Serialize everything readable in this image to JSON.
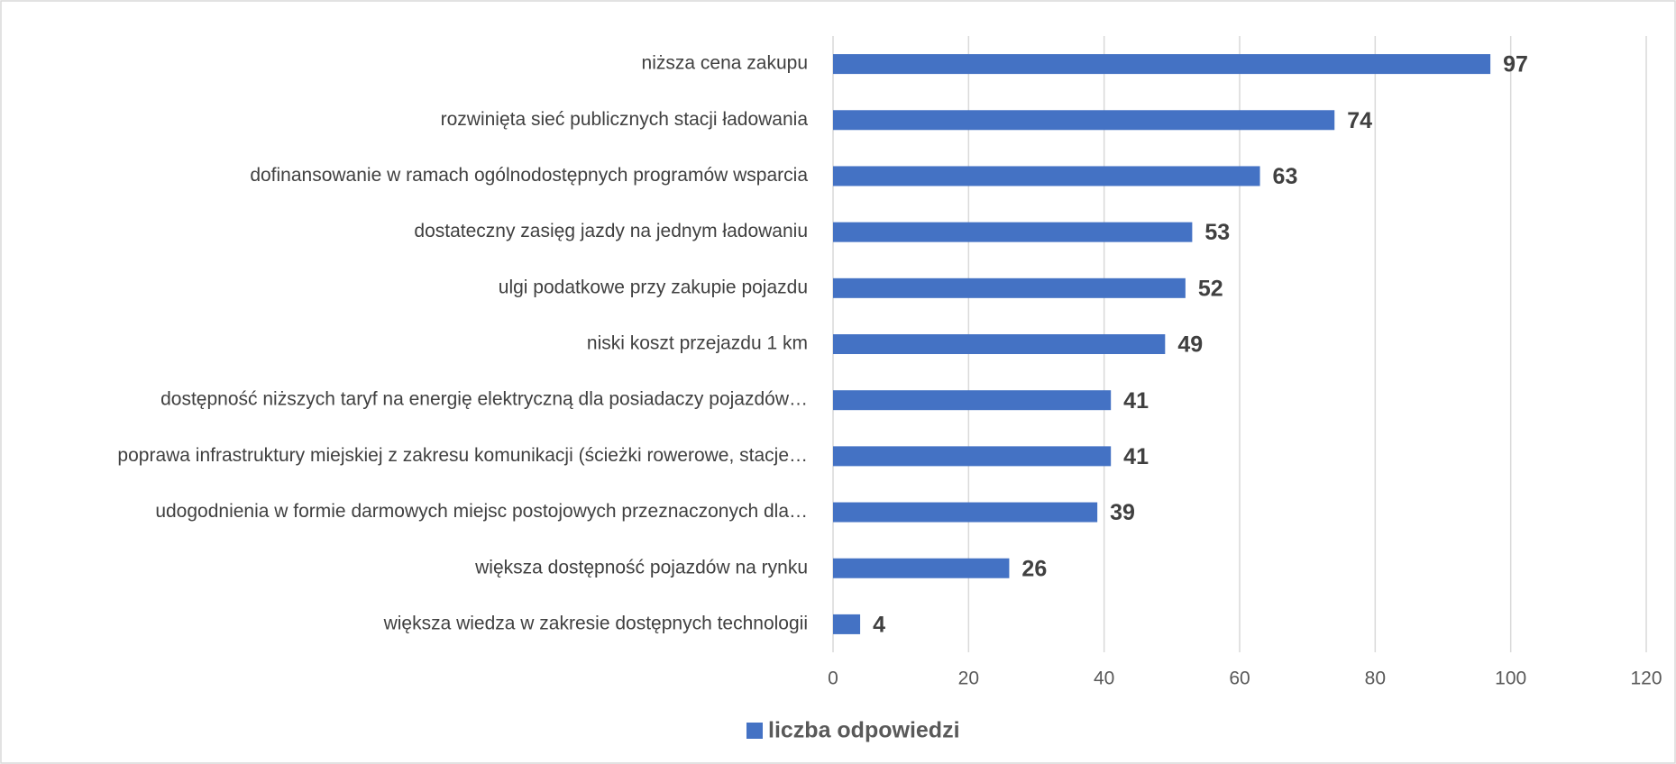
{
  "chart_data": {
    "type": "barh",
    "categories": [
      "niższa cena zakupu",
      "rozwinięta sieć publicznych stacji ładowania",
      "dofinansowanie w ramach ogólnodostępnych programów wsparcia",
      "dostateczny zasięg jazdy na jednym ładowaniu",
      "ulgi podatkowe przy zakupie pojazdu",
      "niski koszt przejazdu 1 km",
      "dostępność niższych taryf na energię elektryczną dla posiadaczy pojazdów…",
      "poprawa infrastruktury miejskiej z zakresu komunikacji (ścieżki rowerowe, stacje…",
      "udogodnienia w formie darmowych miejsc postojowych przeznaczonych dla…",
      "większa dostępność pojazdów na rynku",
      "większa wiedza w zakresie dostępnych technologii"
    ],
    "series": [
      {
        "name": "liczba odpowiedzi",
        "color": "#4472c4",
        "values": [
          97,
          74,
          63,
          53,
          52,
          49,
          41,
          41,
          39,
          26,
          4
        ]
      }
    ],
    "xlim": [
      0,
      120
    ],
    "xticks": [
      0,
      20,
      40,
      60,
      80,
      100,
      120
    ],
    "grid": true,
    "legend": "bottom"
  }
}
